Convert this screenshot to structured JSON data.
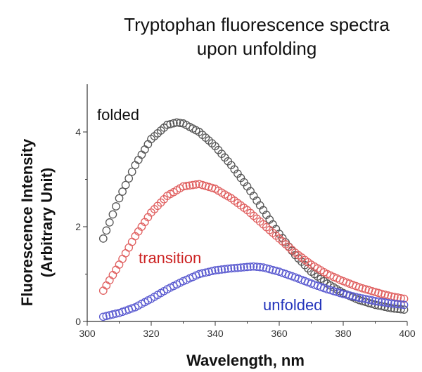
{
  "chart_data": {
    "type": "scatter",
    "title_lines": [
      "Tryptophan fluorescence spectra",
      "upon unfolding"
    ],
    "xlabel": "Wavelength, nm",
    "ylabel_lines": [
      "Fluorescence Intensity",
      "(Arbitrary Unit)"
    ],
    "xlim": [
      300,
      400
    ],
    "ylim": [
      0,
      5
    ],
    "xticks": [
      300,
      320,
      340,
      360,
      380,
      400
    ],
    "yticks": [
      0,
      2,
      4
    ],
    "grid": false,
    "legend": "none",
    "series": [
      {
        "name": "folded",
        "color": "#555555",
        "x": [
          305,
          310,
          315,
          320,
          325,
          328,
          330,
          335,
          340,
          345,
          350,
          355,
          360,
          365,
          370,
          375,
          380,
          385,
          390,
          395,
          399
        ],
        "y": [
          1.75,
          2.6,
          3.3,
          3.85,
          4.15,
          4.2,
          4.18,
          4.0,
          3.7,
          3.3,
          2.85,
          2.35,
          1.85,
          1.4,
          1.05,
          0.8,
          0.6,
          0.45,
          0.35,
          0.28,
          0.25
        ]
      },
      {
        "name": "transition",
        "color": "#e06060",
        "x": [
          305,
          310,
          315,
          320,
          325,
          330,
          335,
          340,
          345,
          350,
          355,
          360,
          365,
          370,
          375,
          380,
          385,
          390,
          395,
          399
        ],
        "y": [
          0.65,
          1.2,
          1.8,
          2.3,
          2.65,
          2.85,
          2.9,
          2.8,
          2.6,
          2.35,
          2.05,
          1.75,
          1.45,
          1.2,
          1.0,
          0.85,
          0.72,
          0.62,
          0.53,
          0.48
        ]
      },
      {
        "name": "unfolded",
        "color": "#5a5ad0",
        "x": [
          305,
          310,
          315,
          320,
          325,
          330,
          335,
          340,
          345,
          350,
          352,
          355,
          360,
          365,
          370,
          375,
          380,
          385,
          390,
          395,
          399
        ],
        "y": [
          0.1,
          0.18,
          0.3,
          0.48,
          0.68,
          0.85,
          1.0,
          1.08,
          1.12,
          1.15,
          1.16,
          1.14,
          1.05,
          0.93,
          0.8,
          0.68,
          0.58,
          0.5,
          0.43,
          0.38,
          0.35
        ]
      }
    ]
  }
}
